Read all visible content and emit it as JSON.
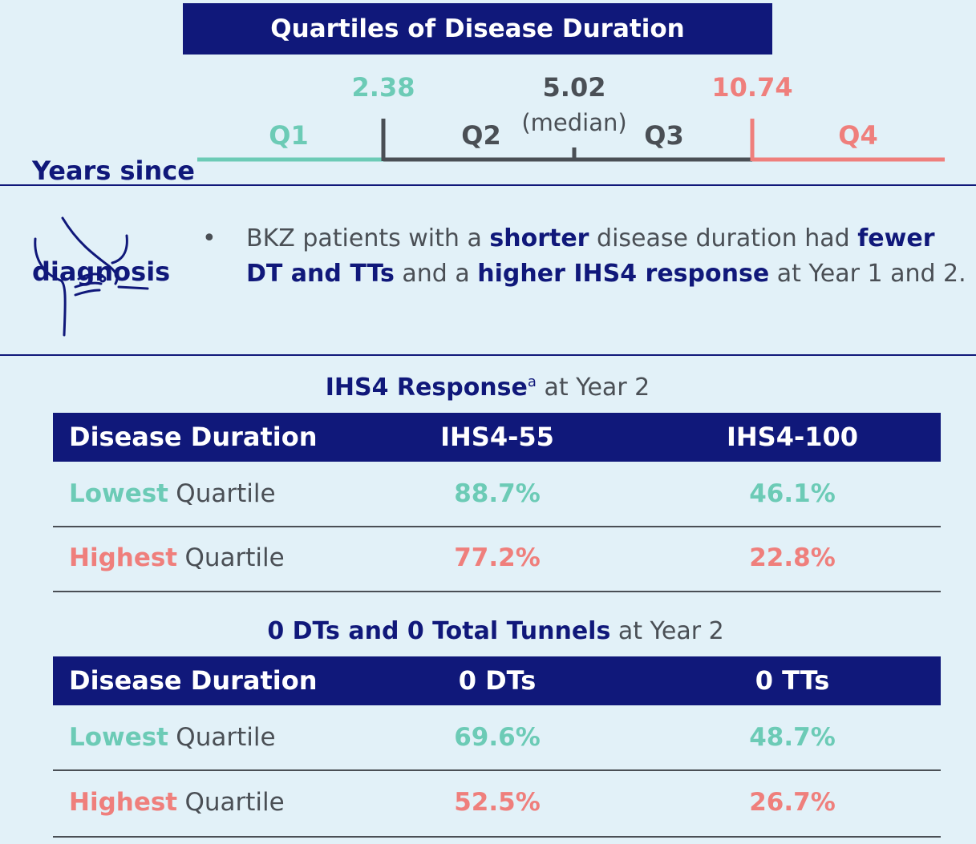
{
  "header": {
    "title": "Quartiles of Disease Duration"
  },
  "quartiles": {
    "axis_label": [
      "Years since",
      "diagnosis"
    ],
    "cut_low": "2.38",
    "median": "5.02",
    "median_note": "(median)",
    "cut_high": "10.74",
    "labels": [
      "Q1",
      "Q2",
      "Q3",
      "Q4"
    ]
  },
  "summary": {
    "bullet": "•",
    "runs": [
      "BKZ patients with a ",
      "shorter",
      " disease duration had ",
      "fewer DT and TTs",
      " and a ",
      "higher IHS4 response",
      " at Year 1 and 2."
    ]
  },
  "tables": [
    {
      "title": [
        "IHS4 Response",
        "a",
        " at Year 2"
      ],
      "header": [
        "Disease Duration",
        "IHS4-55",
        "IHS4-100"
      ],
      "rows": [
        {
          "group": "Lowest",
          "label": "Quartile",
          "cells": [
            "88.7%",
            "46.1%"
          ]
        },
        {
          "group": "Highest",
          "label": "Quartile",
          "cells": [
            "77.2%",
            "22.8%"
          ]
        }
      ]
    },
    {
      "title": [
        "0 DTs and 0 Total Tunnels",
        " at Year 2"
      ],
      "header": [
        "Disease Duration",
        "0 DTs",
        "0 TTs"
      ],
      "rows": [
        {
          "group": "Lowest",
          "label": "Quartile",
          "cells": [
            "69.6%",
            "48.7%"
          ]
        },
        {
          "group": "Highest",
          "label": "Quartile",
          "cells": [
            "52.5%",
            "26.7%"
          ]
        }
      ]
    }
  ]
}
